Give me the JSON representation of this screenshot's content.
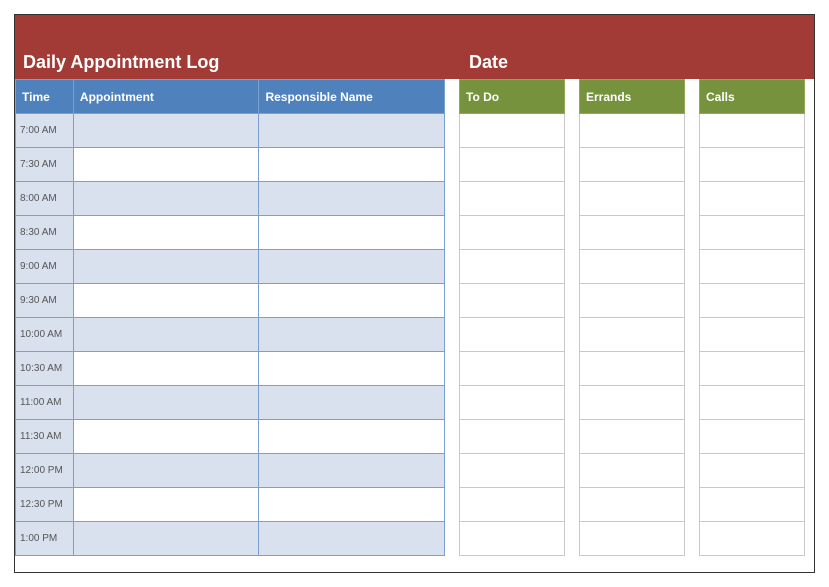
{
  "colors": {
    "title_bg": "#a23a35",
    "blue_header": "#4f81bd",
    "blue_border": "#7ba0cd",
    "green_header": "#76923c",
    "green_border": "#8fa95a",
    "row_shade": "#d9e1ee",
    "time_shade": "#d9e1ee"
  },
  "titles": {
    "main": "Daily Appointment Log",
    "date": "Date"
  },
  "appointment_table": {
    "headers": {
      "time": "Time",
      "appointment": "Appointment",
      "responsible": "Responsible Name"
    },
    "rows": [
      {
        "time": "7:00 AM",
        "shaded": true
      },
      {
        "time": "7:30 AM",
        "shaded": false
      },
      {
        "time": "8:00 AM",
        "shaded": true
      },
      {
        "time": "8:30 AM",
        "shaded": false
      },
      {
        "time": "9:00 AM",
        "shaded": true
      },
      {
        "time": "9:30 AM",
        "shaded": false
      },
      {
        "time": "10:00 AM",
        "shaded": true
      },
      {
        "time": "10:30 AM",
        "shaded": false
      },
      {
        "time": "11:00 AM",
        "shaded": true
      },
      {
        "time": "11:30 AM",
        "shaded": false
      },
      {
        "time": "12:00 PM",
        "shaded": true
      },
      {
        "time": "12:30 PM",
        "shaded": false
      },
      {
        "time": "1:00 PM",
        "shaded": true
      }
    ]
  },
  "side_lists": {
    "row_count": 13,
    "columns": [
      {
        "header": "To Do"
      },
      {
        "header": "Errands"
      },
      {
        "header": "Calls"
      }
    ]
  }
}
